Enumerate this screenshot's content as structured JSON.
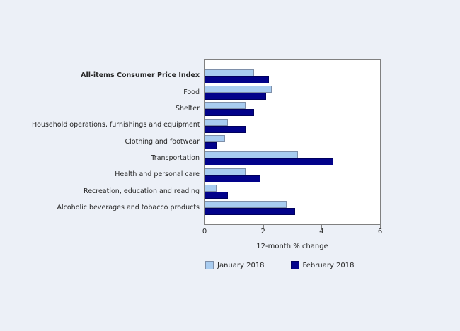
{
  "ui": {
    "background_color": "#ECF0F7",
    "plot_background_color": "#FFFFFF",
    "plot_border_color": "#808080",
    "tick_color": "#808080",
    "text_color": "#262626"
  },
  "chart_data": {
    "type": "bar",
    "orientation": "horizontal",
    "xlabel": "12-month % change",
    "xlim": [
      0,
      6
    ],
    "xticks": [
      0,
      2,
      4,
      6
    ],
    "grid": false,
    "legend_position": "bottom",
    "emphasized_category": "All-items Consumer Price Index",
    "categories": [
      "All-items Consumer Price Index",
      "Food",
      "Shelter",
      "Household operations, furnishings and equipment",
      "Clothing and footwear",
      "Transportation",
      "Health and personal care",
      "Recreation, education and reading",
      "Alcoholic beverages and tobacco products"
    ],
    "series": [
      {
        "name": "January 2018",
        "color": "#A8CCF0",
        "border_color": "#7E8FA9",
        "values": [
          1.7,
          2.3,
          1.4,
          0.8,
          0.7,
          3.2,
          1.4,
          0.4,
          2.8
        ]
      },
      {
        "name": "February 2018",
        "color": "#02028A",
        "border_color": "#00005E",
        "values": [
          2.2,
          2.1,
          1.7,
          1.4,
          0.4,
          4.4,
          1.9,
          0.8,
          3.1
        ]
      }
    ]
  }
}
